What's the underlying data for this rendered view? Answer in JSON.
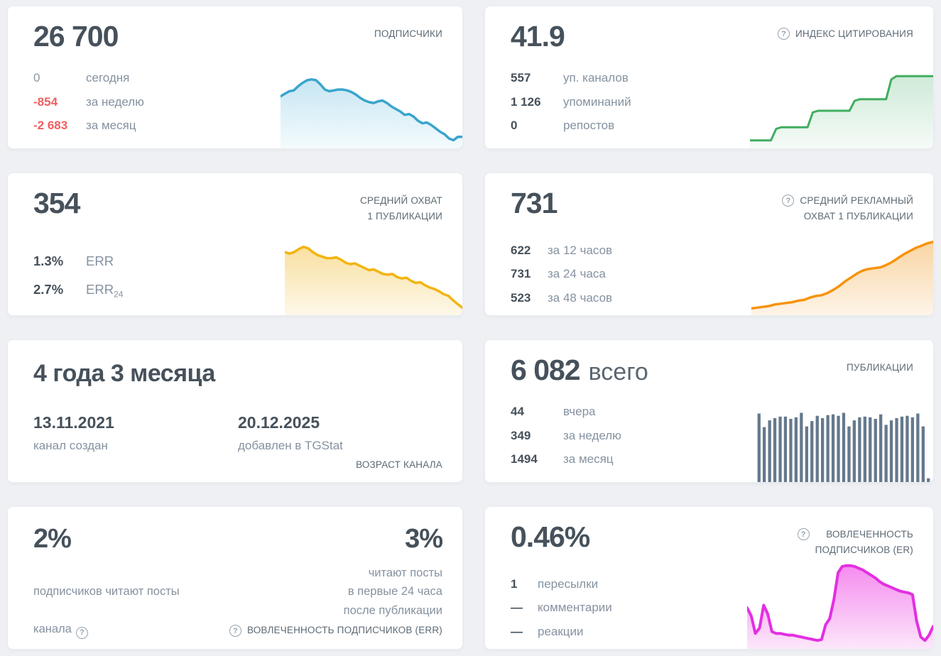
{
  "icons": {
    "help": "?"
  },
  "cards": {
    "subscribers": {
      "value": "26 700",
      "title": "ПОДПИСЧИКИ",
      "stats": [
        {
          "value": "0",
          "label": "сегодня",
          "tone": "muted"
        },
        {
          "value": "-854",
          "label": "за неделю",
          "tone": "negative"
        },
        {
          "value": "-2 683",
          "label": "за месяц",
          "tone": "negative"
        }
      ]
    },
    "citation": {
      "value": "41.9",
      "title": "ИНДЕКС ЦИТИРОВАНИЯ",
      "stats": [
        {
          "value": "557",
          "label": "уп. каналов"
        },
        {
          "value": "1 126",
          "label": "упоминаний"
        },
        {
          "value": "0",
          "label": "репостов"
        }
      ]
    },
    "avg_reach": {
      "value": "354",
      "title": "СРЕДНИЙ ОХВАТ\n1 ПУБЛИКАЦИИ",
      "stats": [
        {
          "value": "1.3%",
          "label": "ERR"
        },
        {
          "value": "2.7%",
          "label": "ERR",
          "sub": "24"
        }
      ]
    },
    "ad_reach": {
      "value": "731",
      "title": "СРЕДНИЙ РЕКЛАМНЫЙ\nОХВАТ 1 ПУБЛИКАЦИИ",
      "stats": [
        {
          "value": "622",
          "label": "за 12 часов"
        },
        {
          "value": "731",
          "label": "за 24 часа"
        },
        {
          "value": "523",
          "label": "за 48 часов"
        }
      ]
    },
    "age": {
      "value": "4 года 3 месяца",
      "dates": [
        {
          "value": "13.11.2021",
          "label": "канал создан"
        },
        {
          "value": "20.12.2025",
          "label": "добавлен в TGStat"
        }
      ],
      "footer": "ВОЗРАСТ КАНАЛА"
    },
    "publications": {
      "value": "6 082",
      "suffix": "всего",
      "title": "ПУБЛИКАЦИИ",
      "stats": [
        {
          "value": "44",
          "label": "вчера"
        },
        {
          "value": "349",
          "label": "за неделю"
        },
        {
          "value": "1494",
          "label": "за месяц"
        }
      ]
    },
    "err": {
      "left_value": "2%",
      "left_caption_line1": "подписчиков читают посты",
      "left_caption_line2": "канала",
      "right_value": "3%",
      "right_caption": "читают посты\nв первые 24 часа\nпосле публикации",
      "footer": "ВОВЛЕЧЕННОСТЬ ПОДПИСЧИКОВ (ERR)"
    },
    "er": {
      "value": "0.46%",
      "title": "ВОВЛЕЧЕННОСТЬ\nПОДПИСЧИКОВ (ER)",
      "stats": [
        {
          "value": "1",
          "label": "пересылки"
        },
        {
          "value": "—",
          "label": "комментарии"
        },
        {
          "value": "—",
          "label": "реакции"
        }
      ]
    }
  },
  "chart_data": [
    {
      "id": "subscribers",
      "type": "area",
      "color": "#39a5cd",
      "fill_top": "#c7e6f3",
      "fill_bottom": "#f4fbfd",
      "stroke_width": 3.5,
      "values": [
        60,
        63,
        66,
        67,
        72,
        76,
        79,
        80,
        79,
        74,
        68,
        66,
        67,
        68,
        68,
        67,
        65,
        62,
        58,
        55,
        53,
        52,
        54,
        55,
        52,
        48,
        45,
        42,
        38,
        39,
        36,
        31,
        28,
        29,
        26,
        22,
        18,
        15,
        10,
        8,
        12,
        12
      ]
    },
    {
      "id": "citation",
      "type": "area",
      "color": "#40ae5f",
      "fill_top": "#cfead8",
      "fill_bottom": "#f5fbf7",
      "stroke_width": 3,
      "values": [
        8,
        8,
        8,
        8,
        8,
        22,
        24,
        24,
        24,
        24,
        24,
        24,
        42,
        44,
        44,
        44,
        44,
        44,
        44,
        44,
        56,
        58,
        58,
        58,
        58,
        58,
        58,
        82,
        86,
        86,
        86,
        86,
        86,
        86,
        86,
        86
      ]
    },
    {
      "id": "avg_reach",
      "type": "area",
      "color": "#f2b410",
      "fill_top": "#f9e0a0",
      "fill_bottom": "#fdf8e9",
      "stroke_width": 3.5,
      "values": [
        82,
        80,
        82,
        86,
        89,
        87,
        82,
        78,
        76,
        74,
        74,
        75,
        72,
        68,
        66,
        67,
        64,
        61,
        58,
        59,
        56,
        53,
        52,
        53,
        49,
        47,
        48,
        44,
        41,
        42,
        38,
        35,
        33,
        30,
        26,
        24,
        18,
        13,
        8
      ]
    },
    {
      "id": "ad_reach",
      "type": "area",
      "color": "#f7930b",
      "fill_top": "#f9d5a4",
      "fill_bottom": "#fdf4e8",
      "stroke_width": 3.5,
      "values": [
        7,
        8,
        9,
        10,
        12,
        13,
        14,
        15,
        17,
        18,
        21,
        23,
        24,
        27,
        31,
        36,
        42,
        47,
        52,
        56,
        58,
        59,
        60,
        63,
        67,
        72,
        77,
        81,
        85,
        88,
        91,
        93
      ]
    },
    {
      "id": "publications",
      "type": "bar",
      "color": "#65798d",
      "values": [
        91,
        73,
        82,
        85,
        87,
        87,
        84,
        86,
        92,
        74,
        81,
        88,
        85,
        89,
        90,
        88,
        92,
        74,
        82,
        86,
        87,
        86,
        84,
        90,
        76,
        82,
        85,
        87,
        88,
        86,
        91,
        74,
        5
      ]
    },
    {
      "id": "er",
      "type": "area",
      "color": "#e32fe2",
      "fill_top": "#f58cef",
      "fill_bottom": "#fce7fa",
      "stroke_width": 4,
      "values": [
        45,
        36,
        16,
        22,
        48,
        38,
        18,
        16,
        16,
        15,
        14,
        14,
        13,
        12,
        11,
        10,
        9,
        8,
        9,
        26,
        33,
        55,
        85,
        92,
        93,
        93,
        92,
        90,
        88,
        85,
        82,
        79,
        75,
        72,
        70,
        68,
        66,
        64,
        63,
        62,
        60,
        30,
        12,
        8,
        14,
        24
      ]
    }
  ]
}
